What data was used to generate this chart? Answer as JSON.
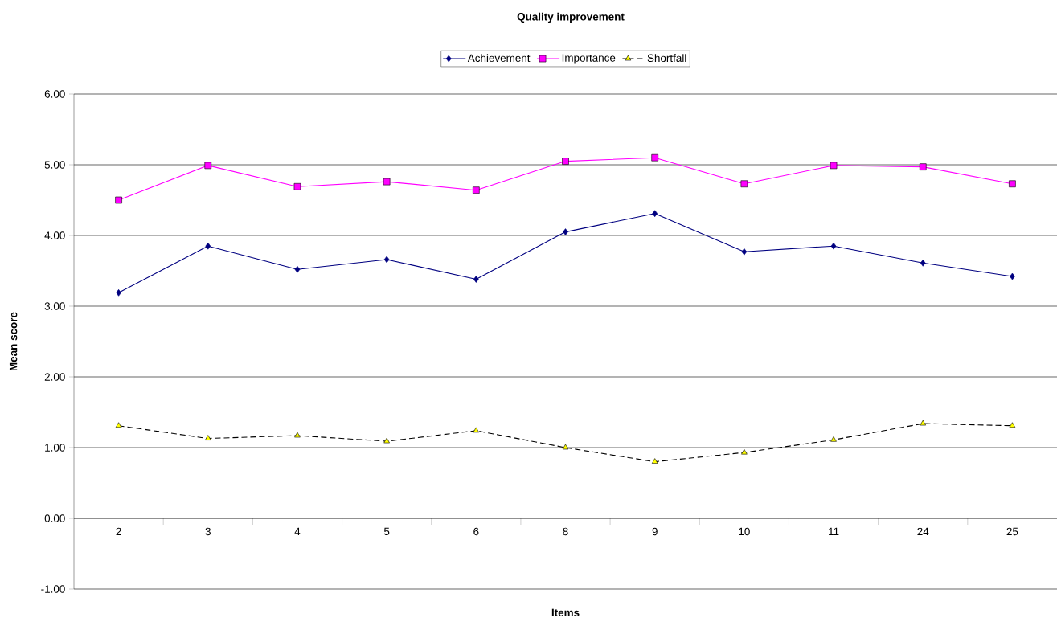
{
  "chart_data": {
    "type": "line",
    "title": "Quality improvement",
    "xlabel": "Items",
    "ylabel": "Mean score",
    "categories": [
      "2",
      "3",
      "4",
      "5",
      "6",
      "8",
      "9",
      "10",
      "11",
      "24",
      "25"
    ],
    "series": [
      {
        "name": "Achievement",
        "color": "#000080",
        "marker": "diamond",
        "line_style": "solid",
        "values": [
          3.19,
          3.85,
          3.52,
          3.66,
          3.38,
          4.05,
          4.31,
          3.77,
          3.85,
          3.61,
          3.42
        ]
      },
      {
        "name": "Importance",
        "color": "#ff00ff",
        "marker": "square",
        "line_style": "solid",
        "values": [
          4.5,
          4.99,
          4.69,
          4.76,
          4.64,
          5.05,
          5.1,
          4.73,
          4.99,
          4.97,
          4.73
        ]
      },
      {
        "name": "Shortfall",
        "color": "#000000",
        "marker": "triangle",
        "line_style": "dashed",
        "values": [
          1.31,
          1.13,
          1.17,
          1.09,
          1.24,
          1.0,
          0.8,
          0.93,
          1.11,
          1.34,
          1.31
        ]
      }
    ],
    "ylim": [
      -1,
      6
    ],
    "yticks": [
      {
        "value": -1,
        "label": "-1.00"
      },
      {
        "value": 0,
        "label": "0.00"
      },
      {
        "value": 1,
        "label": "1.00"
      },
      {
        "value": 2,
        "label": "2.00"
      },
      {
        "value": 3,
        "label": "3.00"
      },
      {
        "value": 4,
        "label": "4.00"
      },
      {
        "value": 5,
        "label": "5.00"
      },
      {
        "value": 6,
        "label": "6.00"
      }
    ],
    "grid": "y",
    "legend": "top"
  }
}
